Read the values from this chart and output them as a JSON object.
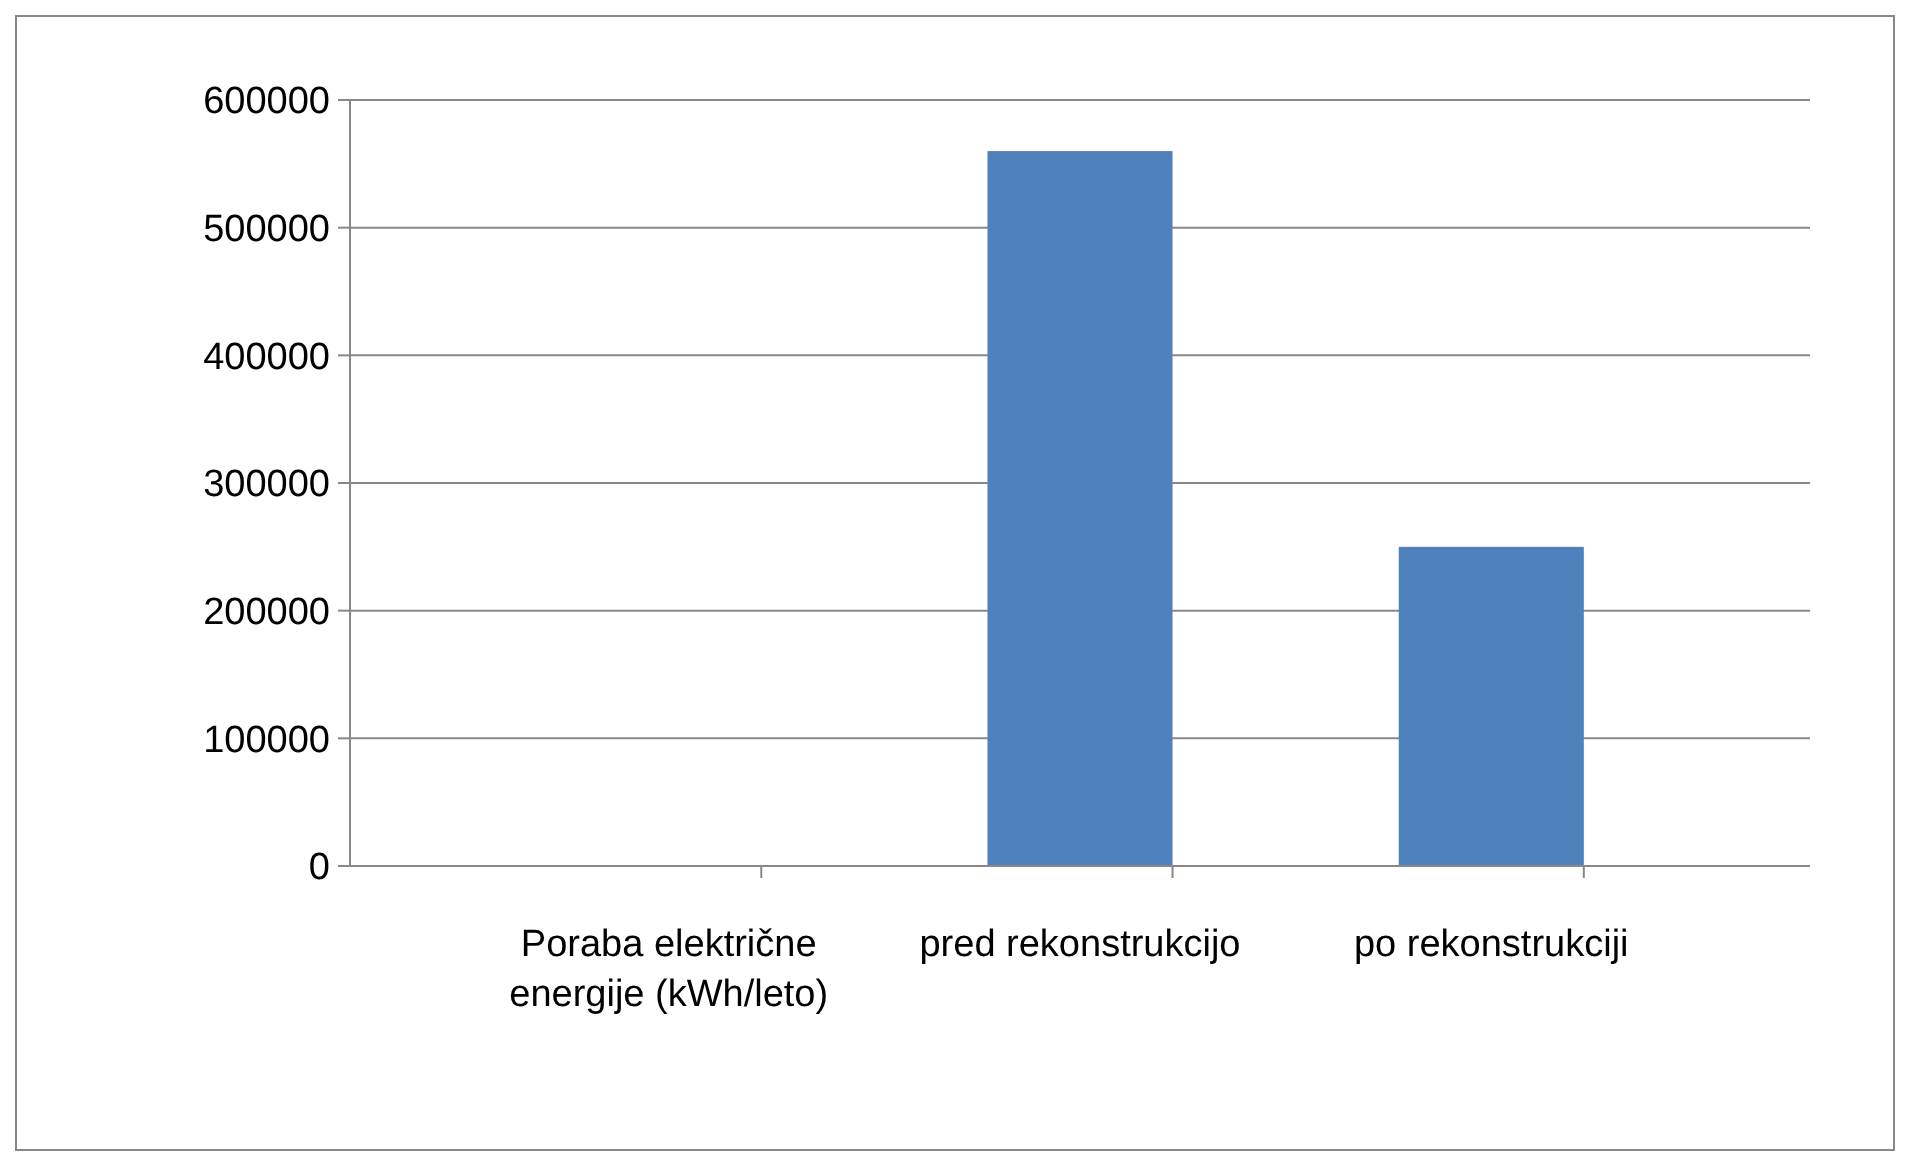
{
  "chart_data": {
    "type": "bar",
    "categories": [
      "Poraba električne energije (kWh/leto)",
      "pred rekonstrukcijo",
      "po rekonstrukciji"
    ],
    "values": [
      null,
      560000,
      250000
    ],
    "color": "#4f81bd",
    "ylim": [
      0,
      600000
    ],
    "yticks": [
      0,
      100000,
      200000,
      300000,
      400000,
      500000,
      600000
    ],
    "grid": "y"
  }
}
